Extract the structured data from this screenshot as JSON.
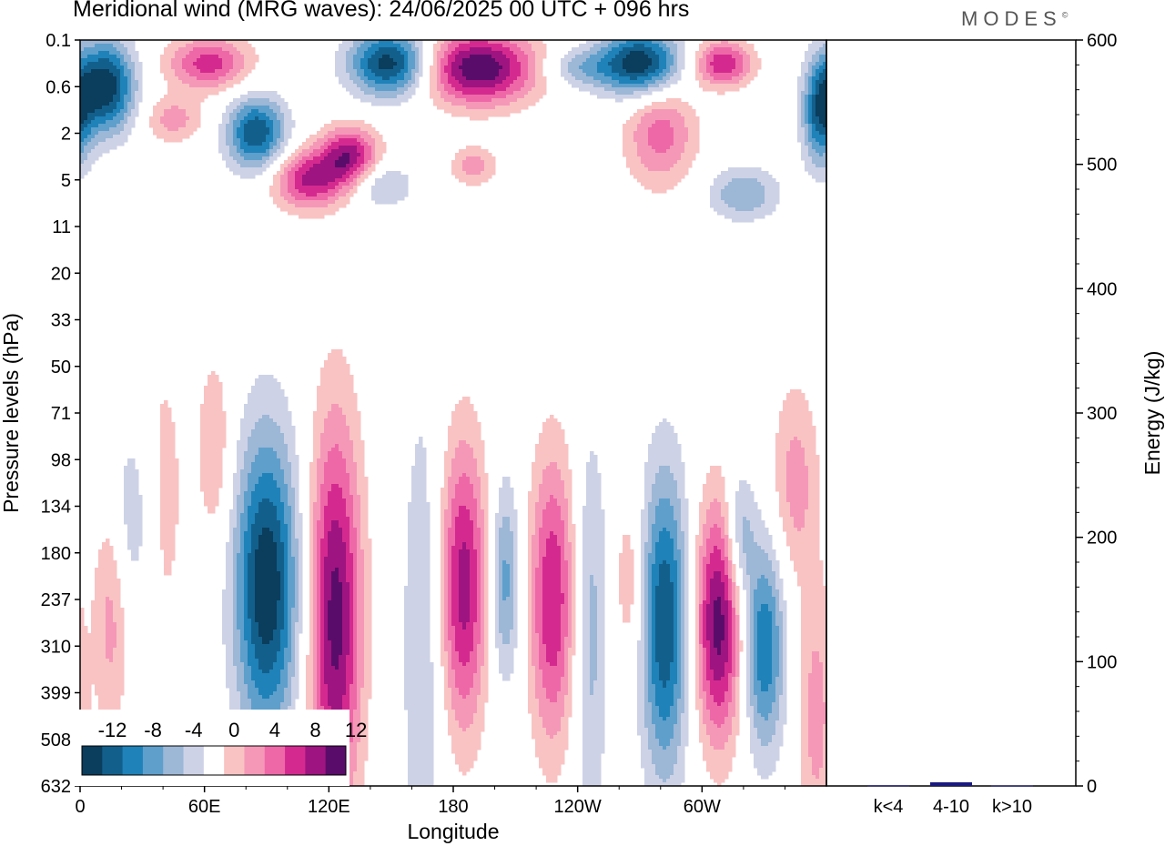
{
  "title": "Meridional wind (MRG waves):  24/06/2025  00 UTC  + 096 hrs",
  "logo": "MODES",
  "logo_mark": "©",
  "chart_data": [
    {
      "type": "heatmap",
      "xlabel": "Longitude",
      "ylabel": "Pressure levels (hPa)",
      "x_ticks": [
        "0",
        "60E",
        "120E",
        "180",
        "120W",
        "60W"
      ],
      "y_ticks": [
        "0.1",
        "0.6",
        "2",
        "5",
        "11",
        "20",
        "33",
        "50",
        "71",
        "98",
        "134",
        "180",
        "237",
        "310",
        "399",
        "508",
        "632"
      ],
      "colorbar": {
        "labels": [
          "-12",
          "-8",
          "-4",
          "0",
          "4",
          "8",
          "12"
        ],
        "levels": [
          -14,
          -12,
          -10,
          -8,
          -6,
          -4,
          -2,
          2,
          4,
          6,
          8,
          10,
          12,
          14
        ],
        "colors": [
          "#0b3d5c",
          "#135f8c",
          "#1f82b8",
          "#5e9fcc",
          "#9db7d6",
          "#cdd2e6",
          "#ffffff",
          "#f9c3c3",
          "#f598b8",
          "#ee68a8",
          "#d42a8f",
          "#9e1480",
          "#5a0c6a"
        ]
      },
      "blobs": [
        {
          "lon": 12,
          "lev": 1.0,
          "amp": -14,
          "w": 10,
          "h": 0.7
        },
        {
          "lon": 45,
          "lev": 1.7,
          "amp": 5,
          "w": 10,
          "h": 0.35
        },
        {
          "lon": 62,
          "lev": 0.5,
          "amp": 9,
          "w": 14,
          "h": 0.4
        },
        {
          "lon": 85,
          "lev": 2.0,
          "amp": -12,
          "w": 10,
          "h": 0.55
        },
        {
          "lon": 110,
          "lev": 3.0,
          "amp": 10,
          "w": 12,
          "h": 0.45
        },
        {
          "lon": 130,
          "lev": 2.5,
          "amp": 11,
          "w": 10,
          "h": 0.45
        },
        {
          "lon": 145,
          "lev": 3.1,
          "amp": -5,
          "w": 10,
          "h": 0.35
        },
        {
          "lon": 150,
          "lev": 0.5,
          "amp": -14,
          "w": 14,
          "h": 0.5
        },
        {
          "lon": 192,
          "lev": 0.6,
          "amp": 14,
          "w": 20,
          "h": 0.55
        },
        {
          "lon": 190,
          "lev": 2.7,
          "amp": 5,
          "w": 8,
          "h": 0.3
        },
        {
          "lon": 240,
          "lev": 0.6,
          "amp": -5,
          "w": 12,
          "h": 0.3
        },
        {
          "lon": 270,
          "lev": 0.5,
          "amp": -14,
          "w": 14,
          "h": 0.5
        },
        {
          "lon": 280,
          "lev": 2.0,
          "amp": 7,
          "w": 12,
          "h": 0.8
        },
        {
          "lon": 310,
          "lev": 0.5,
          "amp": 10,
          "w": 10,
          "h": 0.35
        },
        {
          "lon": 320,
          "lev": 3.3,
          "amp": -6,
          "w": 12,
          "h": 0.4
        },
        {
          "lon": 357,
          "lev": 1.6,
          "amp": -10,
          "w": 6,
          "h": 0.8
        },
        {
          "lon": 15,
          "lev": 12.3,
          "amp": 5,
          "w": 6,
          "h": 1.8
        },
        {
          "lon": 25,
          "lev": 10.3,
          "amp": -4,
          "w": 8,
          "h": 1.5
        },
        {
          "lon": 40,
          "lev": 9.8,
          "amp": 3,
          "w": 8,
          "h": 2.5
        },
        {
          "lon": 65,
          "lev": 8.8,
          "amp": 4,
          "w": 6,
          "h": 1.5
        },
        {
          "lon": 90,
          "lev": 11.7,
          "amp": -14,
          "w": 11,
          "h": 2.3
        },
        {
          "lon": 123,
          "lev": 12.4,
          "amp": 13,
          "w": 9,
          "h": 3.0
        },
        {
          "lon": 165,
          "lev": 13.0,
          "amp": -4,
          "w": 7,
          "h": 4.0
        },
        {
          "lon": 185,
          "lev": 11.7,
          "amp": 11,
          "w": 8,
          "h": 2.2
        },
        {
          "lon": 205,
          "lev": 11.6,
          "amp": -7,
          "w": 5,
          "h": 1.5
        },
        {
          "lon": 228,
          "lev": 12.0,
          "amp": 10,
          "w": 8,
          "h": 2.2
        },
        {
          "lon": 246,
          "lev": 12.6,
          "amp": -5,
          "w": 6,
          "h": 3.0
        },
        {
          "lon": 265,
          "lev": 11.6,
          "amp": 4,
          "w": 5,
          "h": 1.2
        },
        {
          "lon": 282,
          "lev": 12.5,
          "amp": -12,
          "w": 8,
          "h": 2.3
        },
        {
          "lon": 308,
          "lev": 12.5,
          "amp": 13,
          "w": 8,
          "h": 1.8
        },
        {
          "lon": 330,
          "lev": 13.0,
          "amp": -10,
          "w": 7,
          "h": 1.6
        },
        {
          "lon": 345,
          "lev": 9.5,
          "amp": 5,
          "w": 8,
          "h": 1.5
        },
        {
          "lon": 318,
          "lev": 10.6,
          "amp": -6,
          "w": 5,
          "h": 1.0
        },
        {
          "lon": 355,
          "lev": 14.5,
          "amp": 5,
          "w": 6,
          "h": 2.0
        }
      ]
    },
    {
      "type": "bar",
      "categories": [
        "k<4",
        "4-10",
        "k>10"
      ],
      "values": [
        0.5,
        3,
        0.3
      ],
      "ylabel": "Energy (J/kg)",
      "ylim": [
        0,
        600
      ],
      "y_ticks": [
        "0",
        "100",
        "200",
        "300",
        "400",
        "500",
        "600"
      ],
      "colors": [
        "#1a1a7e",
        "#1a1a7e",
        "#1a1a7e"
      ]
    }
  ]
}
